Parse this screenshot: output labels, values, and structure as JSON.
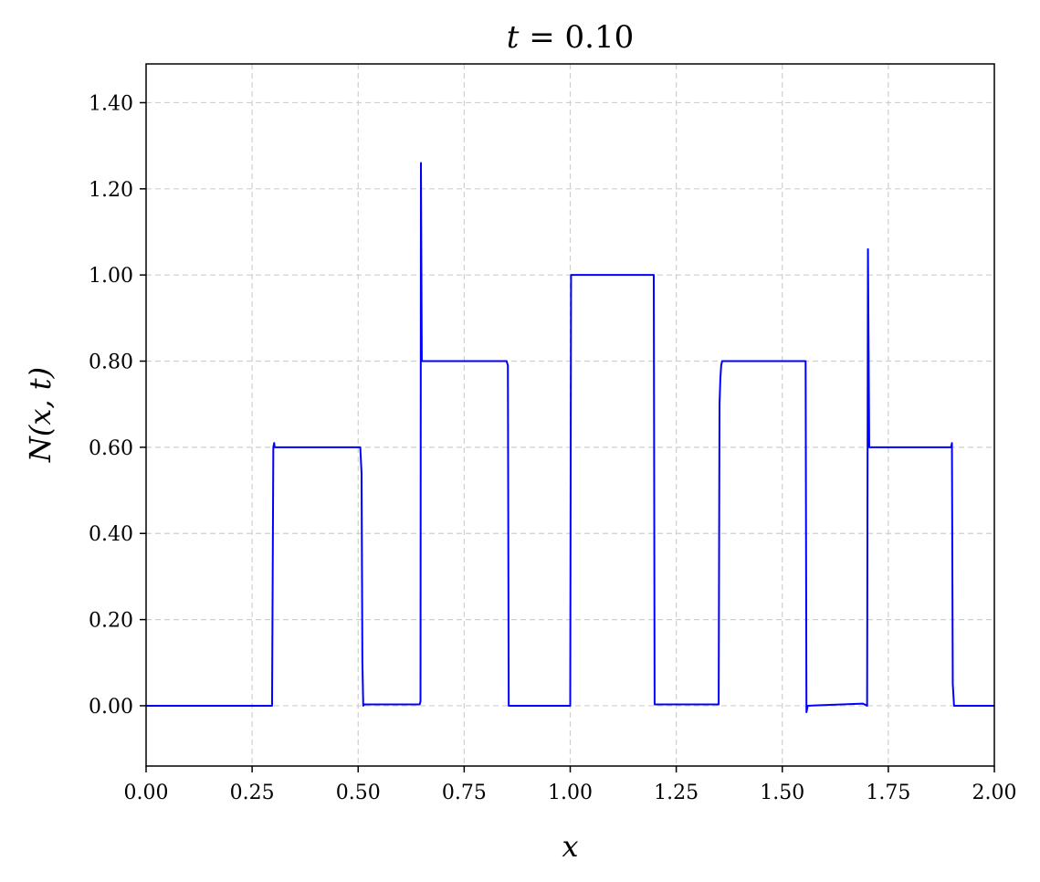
{
  "chart_data": {
    "type": "line",
    "title": {
      "variable": "t",
      "equals": " = ",
      "value": "0.10"
    },
    "xlabel": "x",
    "ylabel": "N(x, t)",
    "xlim": [
      0.0,
      2.0
    ],
    "ylim": [
      -0.14,
      1.49
    ],
    "x_ticks": [
      0.0,
      0.25,
      0.5,
      0.75,
      1.0,
      1.25,
      1.5,
      1.75,
      2.0
    ],
    "x_tick_labels": [
      "0.00",
      "0.25",
      "0.50",
      "0.75",
      "1.00",
      "1.25",
      "1.50",
      "1.75",
      "2.00"
    ],
    "y_ticks": [
      0.0,
      0.2,
      0.4,
      0.6,
      0.8,
      1.0,
      1.2,
      1.4
    ],
    "y_tick_labels": [
      "0.00",
      "0.20",
      "0.40",
      "0.60",
      "0.80",
      "1.00",
      "1.20",
      "1.40"
    ],
    "grid": true,
    "series": [
      {
        "color": "#0000ff",
        "points": [
          [
            0.0,
            0.0
          ],
          [
            0.297,
            0.0
          ],
          [
            0.3,
            0.6
          ],
          [
            0.302,
            0.61
          ],
          [
            0.303,
            0.6
          ],
          [
            0.505,
            0.6
          ],
          [
            0.508,
            0.54
          ],
          [
            0.51,
            0.1
          ],
          [
            0.512,
            0.0
          ],
          [
            0.515,
            0.003
          ],
          [
            0.645,
            0.003
          ],
          [
            0.647,
            0.01
          ],
          [
            0.648,
            1.26
          ],
          [
            0.65,
            0.8
          ],
          [
            0.66,
            0.8
          ],
          [
            0.85,
            0.8
          ],
          [
            0.853,
            0.79
          ],
          [
            0.855,
            0.0
          ],
          [
            1.0,
            0.0
          ],
          [
            1.002,
            1.0
          ],
          [
            1.197,
            1.0
          ],
          [
            1.199,
            0.003
          ],
          [
            1.35,
            0.003
          ],
          [
            1.352,
            0.7
          ],
          [
            1.354,
            0.76
          ],
          [
            1.356,
            0.79
          ],
          [
            1.358,
            0.8
          ],
          [
            1.555,
            0.8
          ],
          [
            1.557,
            -0.015
          ],
          [
            1.56,
            0.0
          ],
          [
            1.69,
            0.005
          ],
          [
            1.7,
            0.0
          ],
          [
            1.702,
            1.06
          ],
          [
            1.705,
            0.6
          ],
          [
            1.71,
            0.6
          ],
          [
            1.898,
            0.6
          ],
          [
            1.9,
            0.61
          ],
          [
            1.902,
            0.05
          ],
          [
            1.905,
            0.0
          ],
          [
            2.0,
            0.0
          ]
        ]
      }
    ]
  }
}
